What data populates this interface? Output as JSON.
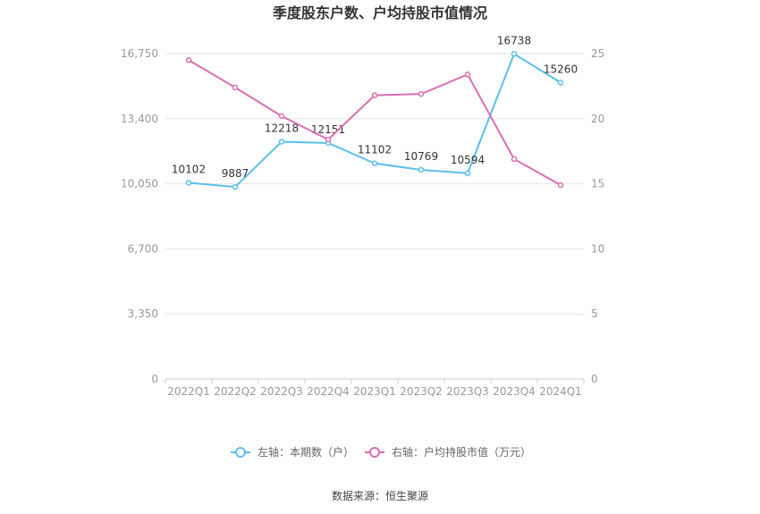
{
  "chart_data": {
    "type": "line",
    "title": "季度股东户数、户均持股市值情况",
    "categories": [
      "2022Q1",
      "2022Q2",
      "2022Q3",
      "2022Q4",
      "2023Q1",
      "2023Q2",
      "2023Q3",
      "2023Q4",
      "2024Q1"
    ],
    "series": [
      {
        "name": "左轴：本期数（户）",
        "axis": "left",
        "color": "#5bc0eb",
        "values": [
          10102,
          9887,
          12218,
          12151,
          11102,
          10769,
          10594,
          16738,
          15260
        ],
        "labels": [
          "10102",
          "9887",
          "12218",
          "12151",
          "11102",
          "10769",
          "10594",
          "16738",
          "15260"
        ]
      },
      {
        "name": "右轴：户均持股市值（万元）",
        "axis": "right",
        "color": "#d96eb2",
        "values": [
          24.5,
          22.4,
          20.2,
          18.4,
          21.8,
          21.9,
          23.4,
          16.9,
          14.9
        ]
      }
    ],
    "left_axis": {
      "ylim": [
        0,
        16750
      ],
      "ticks": [
        "0",
        "3,350",
        "6,700",
        "10,050",
        "13,400",
        "16,750"
      ]
    },
    "right_axis": {
      "ylim": [
        0,
        25
      ],
      "ticks": [
        "0",
        "5",
        "10",
        "15",
        "20",
        "25"
      ]
    },
    "grid": true,
    "legend_position": "bottom"
  },
  "source": "数据来源：恒生聚源"
}
